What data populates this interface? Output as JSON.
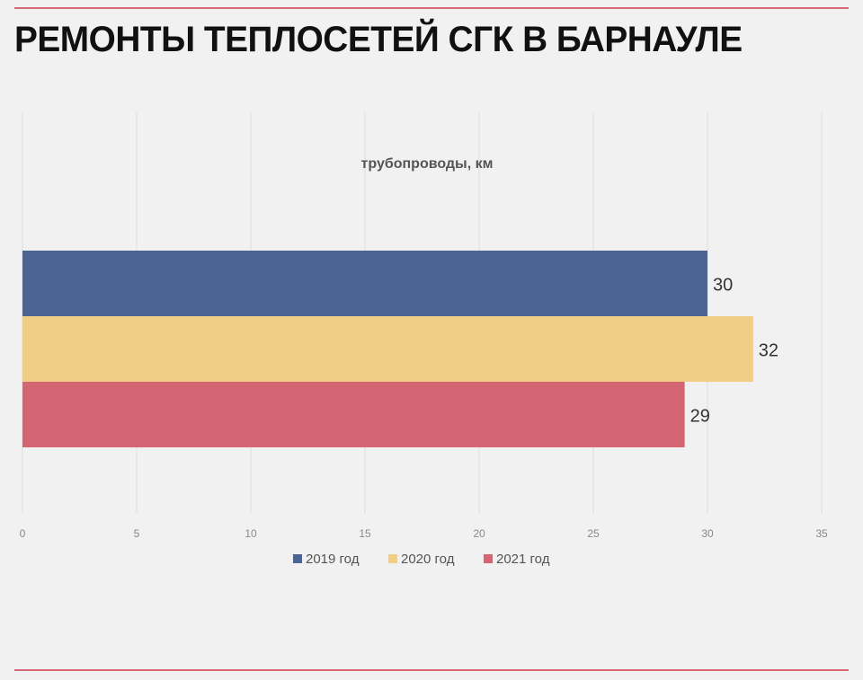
{
  "header": {
    "title": "РЕМОНТЫ ТЕПЛОСЕТЕЙ СГК В БАРНАУЛЕ"
  },
  "colors": {
    "accent_rule": "#d9677a",
    "series_2019": "#4a6594",
    "series_2020": "#f0cf84",
    "series_2021": "#d36672",
    "gridline": "#dddddd",
    "tick_text": "#888888"
  },
  "chart_data": {
    "type": "bar",
    "orientation": "horizontal",
    "title": "трубопроводы, км",
    "xlabel": "",
    "ylabel": "",
    "xlim": [
      0,
      35
    ],
    "xticks": [
      0,
      5,
      10,
      15,
      20,
      25,
      30,
      35
    ],
    "grid": true,
    "legend_position": "bottom",
    "series": [
      {
        "name": "2019 год",
        "values": [
          30
        ],
        "color": "#4a6594"
      },
      {
        "name": "2020 год",
        "values": [
          32
        ],
        "color": "#f0cf84"
      },
      {
        "name": "2021 год",
        "values": [
          29
        ],
        "color": "#d36672"
      }
    ]
  }
}
